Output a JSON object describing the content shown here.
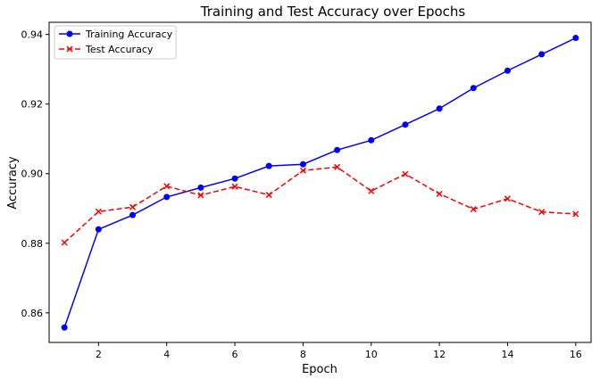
{
  "chart_data": {
    "type": "line",
    "title": "Training and Test Accuracy over Epochs",
    "xlabel": "Epoch",
    "ylabel": "Accuracy",
    "xlim": [
      0.55,
      16.45
    ],
    "ylim": [
      0.8515,
      0.9435
    ],
    "xticks": [
      2,
      4,
      6,
      8,
      10,
      12,
      14,
      16
    ],
    "yticks": [
      0.86,
      0.88,
      0.9,
      0.92,
      0.94
    ],
    "grid": false,
    "legend_position": "top-left",
    "x": [
      1,
      2,
      3,
      4,
      5,
      6,
      7,
      8,
      9,
      10,
      11,
      12,
      13,
      14,
      15,
      16
    ],
    "series": [
      {
        "name": "Training Accuracy",
        "color": "#0000ff",
        "marker": "circle",
        "linestyle": "solid",
        "values": [
          0.8558,
          0.884,
          0.8881,
          0.8933,
          0.896,
          0.8986,
          0.9022,
          0.9027,
          0.9068,
          0.9096,
          0.9141,
          0.9187,
          0.9246,
          0.9296,
          0.9343,
          0.939
        ]
      },
      {
        "name": "Test Accuracy",
        "color": "#ff0000",
        "marker": "x",
        "linestyle": "dashed",
        "values": [
          0.8802,
          0.8891,
          0.8904,
          0.8964,
          0.8938,
          0.8963,
          0.8939,
          0.9009,
          0.9019,
          0.895,
          0.8999,
          0.8942,
          0.8898,
          0.8928,
          0.889,
          0.8884
        ]
      }
    ]
  }
}
